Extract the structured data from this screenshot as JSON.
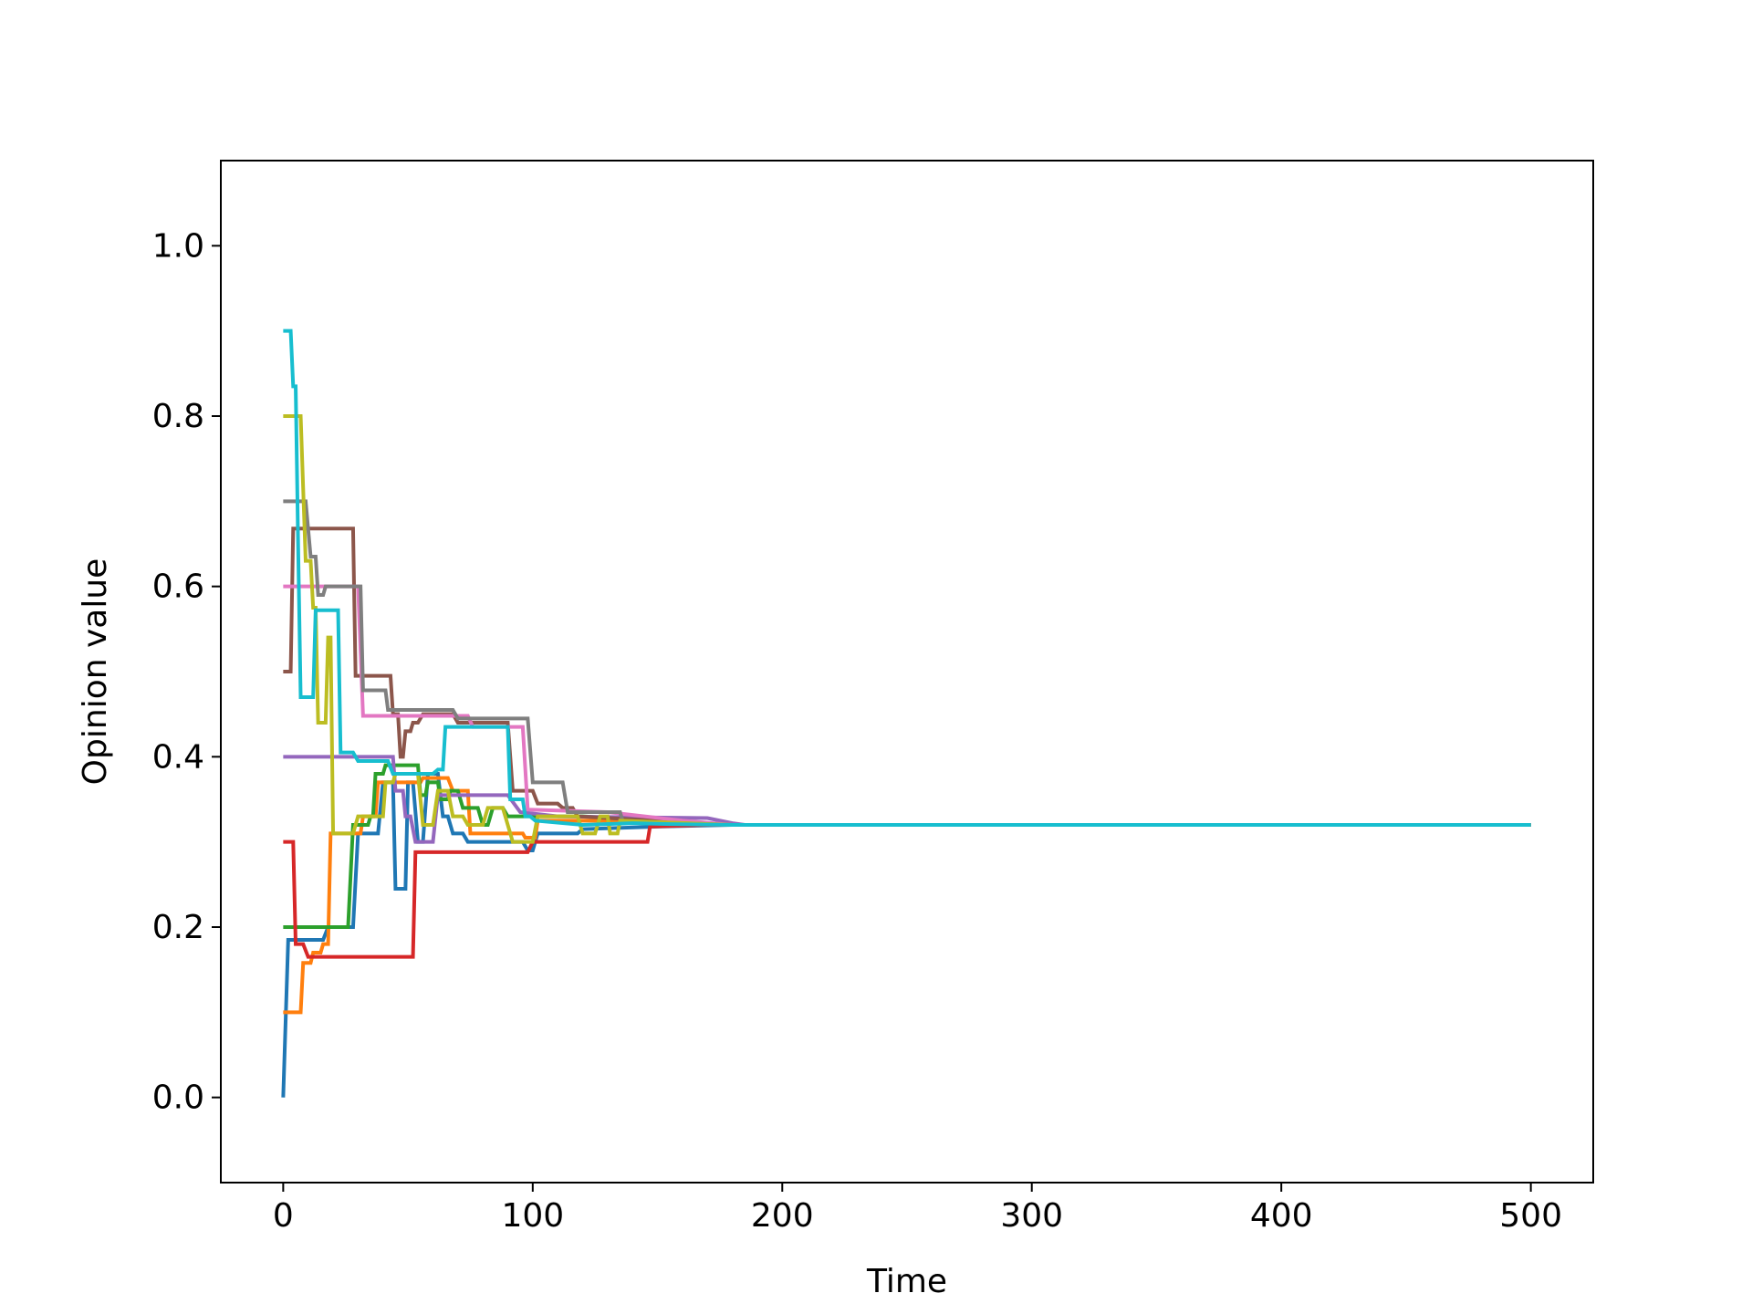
{
  "chart_data": {
    "type": "line",
    "title": "",
    "xlabel": "Time",
    "ylabel": "Opinion value",
    "xlim": [
      -25,
      525
    ],
    "ylim": [
      -0.1,
      1.1
    ],
    "xticks": [
      0,
      100,
      200,
      300,
      400,
      500
    ],
    "xtick_labels": [
      "0",
      "100",
      "200",
      "300",
      "400",
      "500"
    ],
    "yticks": [
      0.0,
      0.2,
      0.4,
      0.6,
      0.8,
      1.0
    ],
    "ytick_labels": [
      "0.0",
      "0.2",
      "0.4",
      "0.6",
      "0.8",
      "1.0"
    ],
    "grid": false,
    "legend": "none",
    "series": [
      {
        "color": "#1f77b4",
        "points": [
          [
            0,
            0.0
          ],
          [
            2,
            0.185
          ],
          [
            16,
            0.185
          ],
          [
            18,
            0.2
          ],
          [
            28,
            0.2
          ],
          [
            30,
            0.31
          ],
          [
            38,
            0.31
          ],
          [
            40,
            0.37
          ],
          [
            44,
            0.37
          ],
          [
            45,
            0.245
          ],
          [
            49,
            0.245
          ],
          [
            50,
            0.37
          ],
          [
            52,
            0.37
          ],
          [
            54,
            0.3
          ],
          [
            56,
            0.3
          ],
          [
            58,
            0.38
          ],
          [
            62,
            0.38
          ],
          [
            64,
            0.33
          ],
          [
            66,
            0.33
          ],
          [
            68,
            0.31
          ],
          [
            72,
            0.31
          ],
          [
            74,
            0.3
          ],
          [
            96,
            0.3
          ],
          [
            98,
            0.29
          ],
          [
            100,
            0.29
          ],
          [
            102,
            0.31
          ],
          [
            118,
            0.31
          ],
          [
            120,
            0.315
          ],
          [
            150,
            0.318
          ],
          [
            180,
            0.32
          ],
          [
            500,
            0.32
          ]
        ]
      },
      {
        "color": "#ff7f0e",
        "points": [
          [
            0,
            0.1
          ],
          [
            7,
            0.1
          ],
          [
            8,
            0.158
          ],
          [
            11,
            0.158
          ],
          [
            12,
            0.17
          ],
          [
            15,
            0.17
          ],
          [
            16,
            0.18
          ],
          [
            18,
            0.18
          ],
          [
            19,
            0.31
          ],
          [
            31,
            0.31
          ],
          [
            32,
            0.33
          ],
          [
            37,
            0.33
          ],
          [
            38,
            0.37
          ],
          [
            55,
            0.37
          ],
          [
            56,
            0.375
          ],
          [
            66,
            0.375
          ],
          [
            68,
            0.36
          ],
          [
            74,
            0.36
          ],
          [
            75,
            0.31
          ],
          [
            96,
            0.31
          ],
          [
            97,
            0.305
          ],
          [
            101,
            0.305
          ],
          [
            102,
            0.325
          ],
          [
            140,
            0.325
          ],
          [
            170,
            0.321
          ],
          [
            185,
            0.32
          ],
          [
            500,
            0.32
          ]
        ]
      },
      {
        "color": "#2ca02c",
        "points": [
          [
            0,
            0.2
          ],
          [
            26,
            0.2
          ],
          [
            28,
            0.32
          ],
          [
            34,
            0.32
          ],
          [
            35,
            0.33
          ],
          [
            36,
            0.33
          ],
          [
            37,
            0.38
          ],
          [
            40,
            0.38
          ],
          [
            41,
            0.39
          ],
          [
            54,
            0.39
          ],
          [
            55,
            0.355
          ],
          [
            57,
            0.355
          ],
          [
            58,
            0.37
          ],
          [
            62,
            0.37
          ],
          [
            63,
            0.35
          ],
          [
            66,
            0.35
          ],
          [
            67,
            0.36
          ],
          [
            70,
            0.36
          ],
          [
            72,
            0.34
          ],
          [
            78,
            0.34
          ],
          [
            80,
            0.32
          ],
          [
            82,
            0.32
          ],
          [
            84,
            0.34
          ],
          [
            88,
            0.34
          ],
          [
            90,
            0.33
          ],
          [
            120,
            0.33
          ],
          [
            150,
            0.325
          ],
          [
            180,
            0.32
          ],
          [
            500,
            0.32
          ]
        ]
      },
      {
        "color": "#d62728",
        "points": [
          [
            0,
            0.3
          ],
          [
            4,
            0.3
          ],
          [
            5,
            0.18
          ],
          [
            8,
            0.18
          ],
          [
            10,
            0.165
          ],
          [
            52,
            0.165
          ],
          [
            53,
            0.288
          ],
          [
            98,
            0.288
          ],
          [
            100,
            0.3
          ],
          [
            146,
            0.3
          ],
          [
            147,
            0.318
          ],
          [
            170,
            0.32
          ],
          [
            500,
            0.32
          ]
        ]
      },
      {
        "color": "#9467bd",
        "points": [
          [
            0,
            0.4
          ],
          [
            44,
            0.4
          ],
          [
            45,
            0.36
          ],
          [
            48,
            0.36
          ],
          [
            49,
            0.33
          ],
          [
            51,
            0.33
          ],
          [
            53,
            0.3
          ],
          [
            60,
            0.3
          ],
          [
            62,
            0.355
          ],
          [
            90,
            0.355
          ],
          [
            95,
            0.335
          ],
          [
            110,
            0.33
          ],
          [
            170,
            0.328
          ],
          [
            180,
            0.322
          ],
          [
            185,
            0.32
          ],
          [
            500,
            0.32
          ]
        ]
      },
      {
        "color": "#8c564b",
        "points": [
          [
            0,
            0.5
          ],
          [
            3,
            0.5
          ],
          [
            4,
            0.668
          ],
          [
            28,
            0.668
          ],
          [
            29,
            0.495
          ],
          [
            43,
            0.495
          ],
          [
            44,
            0.45
          ],
          [
            46,
            0.45
          ],
          [
            47,
            0.4
          ],
          [
            48,
            0.4
          ],
          [
            49,
            0.43
          ],
          [
            51,
            0.43
          ],
          [
            52,
            0.44
          ],
          [
            54,
            0.44
          ],
          [
            56,
            0.45
          ],
          [
            68,
            0.45
          ],
          [
            70,
            0.44
          ],
          [
            90,
            0.44
          ],
          [
            92,
            0.36
          ],
          [
            100,
            0.36
          ],
          [
            102,
            0.345
          ],
          [
            110,
            0.345
          ],
          [
            112,
            0.34
          ],
          [
            116,
            0.34
          ],
          [
            118,
            0.33
          ],
          [
            150,
            0.325
          ],
          [
            180,
            0.32
          ],
          [
            500,
            0.32
          ]
        ]
      },
      {
        "color": "#e377c2",
        "points": [
          [
            0,
            0.6
          ],
          [
            30,
            0.6
          ],
          [
            32,
            0.448
          ],
          [
            74,
            0.448
          ],
          [
            76,
            0.435
          ],
          [
            96,
            0.435
          ],
          [
            98,
            0.338
          ],
          [
            130,
            0.335
          ],
          [
            160,
            0.325
          ],
          [
            180,
            0.32
          ],
          [
            500,
            0.32
          ]
        ]
      },
      {
        "color": "#7f7f7f",
        "points": [
          [
            0,
            0.7
          ],
          [
            9,
            0.7
          ],
          [
            11,
            0.635
          ],
          [
            13,
            0.635
          ],
          [
            14,
            0.59
          ],
          [
            16,
            0.59
          ],
          [
            17,
            0.6
          ],
          [
            31,
            0.6
          ],
          [
            32,
            0.478
          ],
          [
            41,
            0.478
          ],
          [
            42,
            0.455
          ],
          [
            68,
            0.455
          ],
          [
            70,
            0.445
          ],
          [
            98,
            0.445
          ],
          [
            100,
            0.37
          ],
          [
            112,
            0.37
          ],
          [
            114,
            0.335
          ],
          [
            135,
            0.335
          ],
          [
            136,
            0.325
          ],
          [
            160,
            0.322
          ],
          [
            180,
            0.32
          ],
          [
            500,
            0.32
          ]
        ]
      },
      {
        "color": "#bcbd22",
        "points": [
          [
            0,
            0.8
          ],
          [
            7,
            0.8
          ],
          [
            9,
            0.63
          ],
          [
            11,
            0.63
          ],
          [
            12,
            0.575
          ],
          [
            13,
            0.575
          ],
          [
            14,
            0.44
          ],
          [
            17,
            0.44
          ],
          [
            18,
            0.54
          ],
          [
            19,
            0.54
          ],
          [
            20,
            0.31
          ],
          [
            28,
            0.31
          ],
          [
            30,
            0.33
          ],
          [
            40,
            0.33
          ],
          [
            41,
            0.37
          ],
          [
            44,
            0.37
          ],
          [
            45,
            0.38
          ],
          [
            54,
            0.38
          ],
          [
            56,
            0.32
          ],
          [
            60,
            0.32
          ],
          [
            62,
            0.36
          ],
          [
            66,
            0.36
          ],
          [
            68,
            0.33
          ],
          [
            72,
            0.33
          ],
          [
            74,
            0.32
          ],
          [
            80,
            0.32
          ],
          [
            82,
            0.34
          ],
          [
            88,
            0.34
          ],
          [
            92,
            0.3
          ],
          [
            100,
            0.3
          ],
          [
            102,
            0.33
          ],
          [
            118,
            0.33
          ],
          [
            120,
            0.31
          ],
          [
            125,
            0.31
          ],
          [
            127,
            0.33
          ],
          [
            130,
            0.33
          ],
          [
            131,
            0.31
          ],
          [
            134,
            0.31
          ],
          [
            135,
            0.325
          ],
          [
            180,
            0.32
          ],
          [
            500,
            0.32
          ]
        ]
      },
      {
        "color": "#17becf",
        "points": [
          [
            0,
            0.9
          ],
          [
            3,
            0.9
          ],
          [
            4,
            0.835
          ],
          [
            5,
            0.835
          ],
          [
            6,
            0.645
          ],
          [
            7,
            0.47
          ],
          [
            12,
            0.47
          ],
          [
            13,
            0.572
          ],
          [
            22,
            0.572
          ],
          [
            23,
            0.405
          ],
          [
            28,
            0.405
          ],
          [
            30,
            0.395
          ],
          [
            42,
            0.395
          ],
          [
            44,
            0.38
          ],
          [
            60,
            0.38
          ],
          [
            62,
            0.385
          ],
          [
            64,
            0.385
          ],
          [
            65,
            0.435
          ],
          [
            90,
            0.435
          ],
          [
            91,
            0.35
          ],
          [
            96,
            0.35
          ],
          [
            97,
            0.33
          ],
          [
            99,
            0.33
          ],
          [
            101,
            0.325
          ],
          [
            120,
            0.32
          ],
          [
            140,
            0.322
          ],
          [
            155,
            0.321
          ],
          [
            180,
            0.32
          ],
          [
            500,
            0.32
          ]
        ]
      }
    ]
  }
}
